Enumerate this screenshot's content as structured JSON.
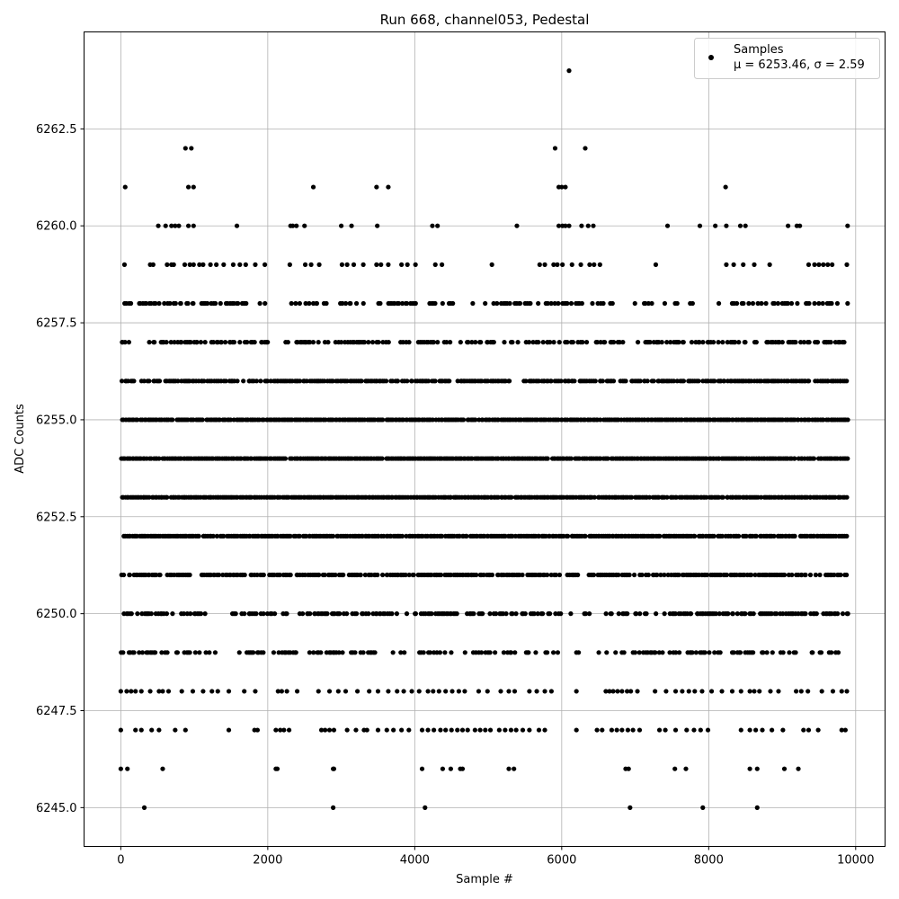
{
  "chart_data": {
    "type": "scatter",
    "title": "Run 668, channel053, Pedestal",
    "xlabel": "Sample #",
    "ylabel": "ADC Counts",
    "xlim": [
      -500,
      10400
    ],
    "ylim": [
      6244.0,
      6265.0
    ],
    "xticks": [
      0,
      2000,
      4000,
      6000,
      8000,
      10000
    ],
    "xtick_labels": [
      "0",
      "2000",
      "4000",
      "6000",
      "8000",
      "10000"
    ],
    "yticks": [
      6245.0,
      6247.5,
      6250.0,
      6252.5,
      6255.0,
      6257.5,
      6260.0,
      6262.5
    ],
    "ytick_labels": [
      "6245.0",
      "6247.5",
      "6250.0",
      "6252.5",
      "6255.0",
      "6257.5",
      "6260.0",
      "6262.5"
    ],
    "grid": true,
    "legend": {
      "placement": "top-right",
      "entries": [
        {
          "label": "Samples",
          "sublabel": "μ = 6253.46, σ = 2.59",
          "color": "#000000",
          "marker": "circle"
        }
      ]
    },
    "series": [
      {
        "name": "Samples",
        "color": "#000000",
        "n_samples": 10000,
        "x_range": [
          0,
          9900
        ],
        "levels": [
          {
            "y": 6264,
            "x": [
              6100
            ]
          },
          {
            "y": 6262,
            "x": [
              880,
              960,
              5910,
              6320
            ]
          },
          {
            "y": 6261,
            "x": [
              60,
              920,
              990,
              2620,
              3480,
              3640,
              5960,
              6000,
              6050,
              8230
            ]
          },
          {
            "y": 6245,
            "x": [
              320,
              2890,
              4140,
              6930,
              7920,
              8660
            ]
          },
          {
            "y": 6246,
            "x": [
              0,
              90,
              570,
              2110,
              2130,
              2890,
              2900,
              4100,
              4380,
              4490,
              4620,
              4650,
              5280,
              5350,
              6870,
              6910,
              7540,
              7690,
              8560,
              8660,
              9030,
              9220
            ]
          },
          {
            "y": 6260,
            "x": [
              510,
              610,
              690,
              740,
              790,
              920,
              990,
              1580,
              2310,
              2340,
              2390,
              2500,
              3000,
              3140,
              3490,
              4240,
              4310,
              5390,
              5960,
              6010,
              6050,
              6100,
              6270,
              6360,
              6430,
              7440,
              7880,
              8090,
              8240,
              8430,
              8500,
              9080,
              9200,
              9240,
              9890
            ]
          },
          {
            "y": 6259,
            "x": [
              50,
              400,
              440,
              630,
              690,
              720,
              870,
              940,
              990,
              1070,
              1120,
              1220,
              1300,
              1400,
              1530,
              1620,
              1700,
              1830,
              1960,
              2300,
              2510,
              2590,
              2700,
              3010,
              3080,
              3170,
              3300,
              3480,
              3540,
              3640,
              3820,
              3900,
              4010,
              4280,
              4370,
              5050,
              5700,
              5770,
              5890,
              5940,
              6010,
              6140,
              6260,
              6380,
              6440,
              6520,
              7280,
              8240,
              8340,
              8470,
              8620,
              8830,
              9360,
              9440,
              9500,
              9560,
              9620,
              9680,
              9880
            ]
          },
          {
            "y": 6247,
            "x": [
              0,
              200,
              280,
              420,
              520,
              740,
              880,
              1470,
              1820,
              1860,
              2110,
              2170,
              2220,
              2290,
              2730,
              2780,
              2840,
              2900,
              3080,
              3200,
              3310,
              3350,
              3500,
              3620,
              3710,
              3820,
              3920,
              4100,
              4180,
              4260,
              4350,
              4420,
              4500,
              4580,
              4650,
              4720,
              4820,
              4890,
              4960,
              5030,
              5150,
              5230,
              5310,
              5380,
              5470,
              5560,
              5690,
              5770,
              6200,
              6480,
              6550,
              6680,
              6750,
              6820,
              6900,
              6970,
              7060,
              7330,
              7410,
              7550,
              7700,
              7800,
              7890,
              7990,
              8440,
              8560,
              8640,
              8730,
              8860,
              9010,
              9290,
              9360,
              9490,
              9810,
              9860
            ]
          },
          {
            "y": 6248,
            "x": [
              0,
              80,
              140,
              200,
              280,
              400,
              520,
              570,
              650,
              830,
              980,
              1120,
              1240,
              1320,
              1470,
              1680,
              1830,
              2140,
              2190,
              2260,
              2400,
              2690,
              2840,
              2960,
              3060,
              3220,
              3380,
              3500,
              3640,
              3760,
              3850,
              3960,
              4060,
              4180,
              4250,
              4330,
              4420,
              4510,
              4600,
              4680,
              4870,
              4990,
              5170,
              5280,
              5360,
              5560,
              5660,
              5770,
              5860,
              6200,
              6600,
              6650,
              6700,
              6760,
              6820,
              6890,
              6940,
              7030,
              7270,
              7420,
              7550,
              7640,
              7730,
              7810,
              7910,
              8040,
              8180,
              8320,
              8440,
              8560,
              8620,
              8690,
              8840,
              8950,
              9190,
              9260,
              9350,
              9540,
              9690,
              9810,
              9880
            ]
          }
        ],
        "dense_levels": [
          {
            "y": 6258,
            "x_range": [
              0,
              9900
            ],
            "density": 0.45,
            "gaps": [
              [
                1980,
                2290
              ],
              [
                3290,
                3400
              ],
              [
                4050,
                4150
              ],
              [
                4550,
                4750
              ],
              [
                5700,
                5780
              ],
              [
                6680,
                6940
              ],
              [
                7800,
                8080
              ],
              [
                8160,
                8260
              ]
            ]
          },
          {
            "y": 6257,
            "x_range": [
              0,
              9900
            ],
            "density": 0.6,
            "gaps": [
              [
                110,
                380
              ],
              [
                2040,
                2200
              ],
              [
                2810,
                2900
              ],
              [
                4470,
                4560
              ],
              [
                6840,
                6980
              ],
              [
                8660,
                8780
              ]
            ]
          },
          {
            "y": 6256,
            "x_range": [
              0,
              9900
            ],
            "density": 0.85,
            "gaps": [
              [
                4480,
                4560
              ],
              [
                5320,
                5400
              ],
              [
                6870,
                6930
              ]
            ]
          },
          {
            "y": 6255,
            "x_range": [
              0,
              9900
            ],
            "density": 0.95,
            "gaps": []
          },
          {
            "y": 6254,
            "x_range": [
              0,
              9900
            ],
            "density": 0.97,
            "gaps": []
          },
          {
            "y": 6253,
            "x_range": [
              0,
              9900
            ],
            "density": 0.97,
            "gaps": []
          },
          {
            "y": 6252,
            "x_range": [
              0,
              9900
            ],
            "density": 0.92,
            "gaps": []
          },
          {
            "y": 6251,
            "x_range": [
              0,
              9900
            ],
            "density": 0.8,
            "gaps": [
              [
                960,
                1060
              ],
              [
                5970,
                6060
              ],
              [
                6240,
                6340
              ]
            ]
          },
          {
            "y": 6250,
            "x_range": [
              0,
              9900
            ],
            "density": 0.65,
            "gaps": [
              [
                700,
                800
              ],
              [
                1180,
                1440
              ],
              [
                2100,
                2170
              ],
              [
                2270,
                2380
              ],
              [
                3760,
                3860
              ],
              [
                5980,
                6100
              ],
              [
                6140,
                6260
              ],
              [
                6370,
                6560
              ],
              [
                7200,
                7260
              ]
            ]
          },
          {
            "y": 6249,
            "x_range": [
              0,
              9900
            ],
            "density": 0.5,
            "gaps": [
              [
                640,
                720
              ],
              [
                1390,
                1540
              ],
              [
                2390,
                2550
              ],
              [
                3520,
                3590
              ],
              [
                3890,
                4020
              ],
              [
                4520,
                4620
              ],
              [
                5400,
                5480
              ],
              [
                5790,
                5870
              ],
              [
                6000,
                6190
              ],
              [
                6260,
                6430
              ],
              [
                7600,
                7680
              ],
              [
                9250,
                9330
              ]
            ]
          }
        ]
      }
    ]
  }
}
